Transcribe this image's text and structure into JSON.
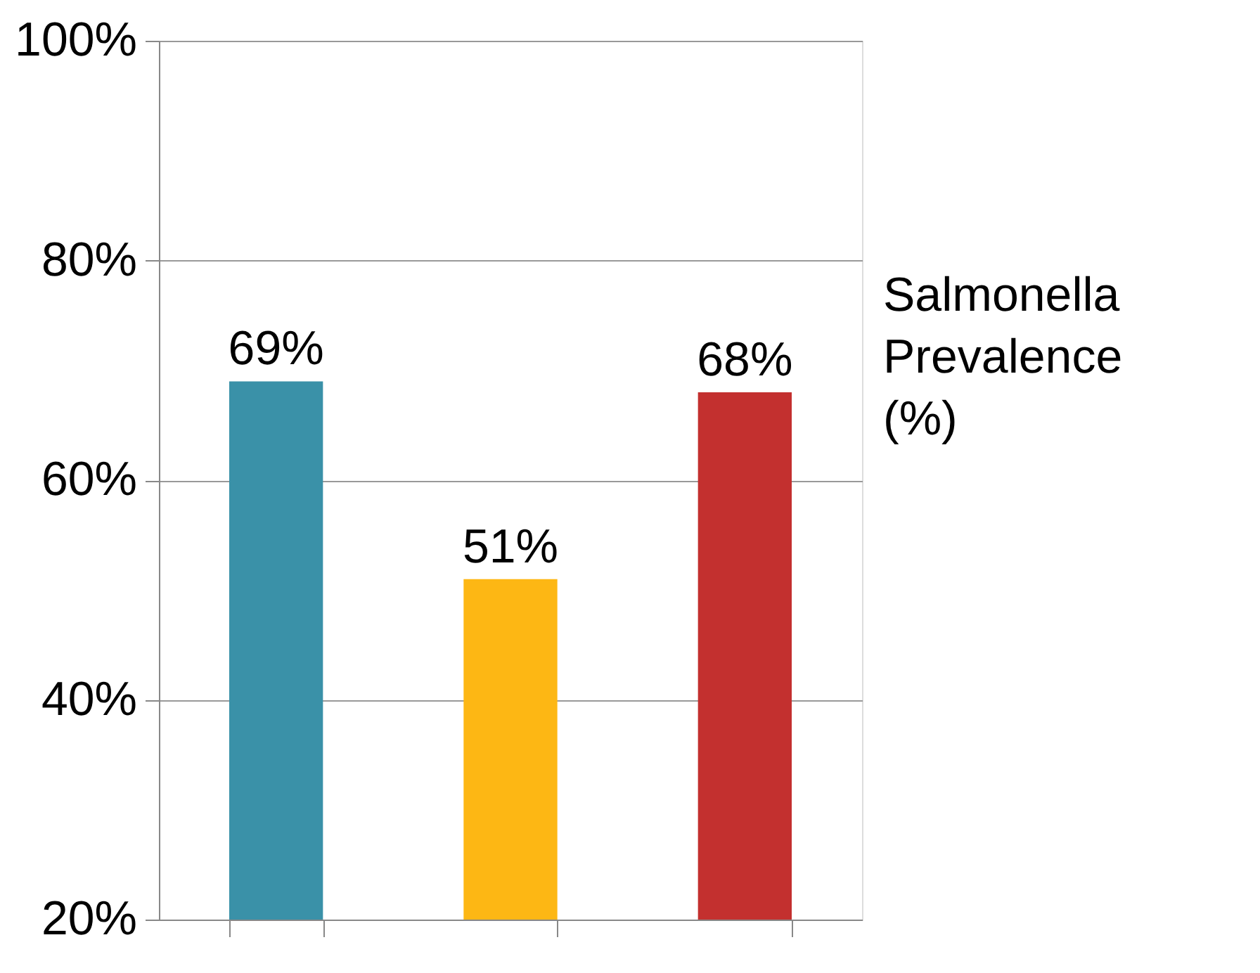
{
  "chart_data": {
    "type": "bar",
    "categories": [
      null,
      null,
      null
    ],
    "values": [
      69,
      51,
      68
    ],
    "colors": [
      "#3a91a8",
      "#fdb714",
      "#c3302f"
    ],
    "ylim": [
      20,
      100
    ],
    "yticks": [
      {
        "value": 20,
        "label": "20%"
      },
      {
        "value": 40,
        "label": "40%"
      },
      {
        "value": 60,
        "label": "60%"
      },
      {
        "value": 80,
        "label": "80%"
      },
      {
        "value": 100,
        "label": "100%"
      }
    ],
    "grid": "y",
    "value_labels": [
      "69%",
      "51%",
      "68%"
    ],
    "annotations": [
      "Salmonella Prevalence (%)"
    ]
  }
}
